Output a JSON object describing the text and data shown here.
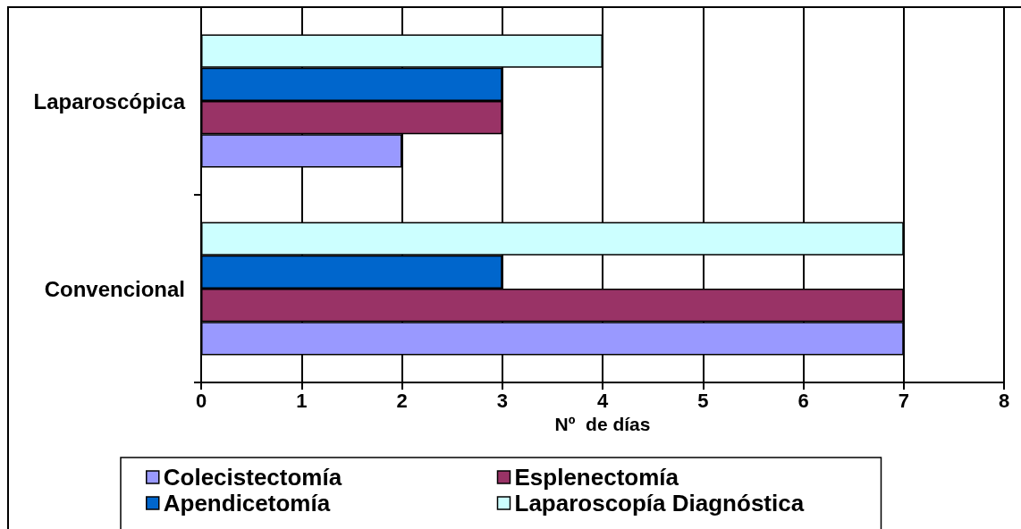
{
  "chart_data": {
    "type": "bar",
    "orientation": "horizontal",
    "categories": [
      "Laparoscópica",
      "Convencional"
    ],
    "xlabel": "Nº  de días",
    "series": [
      {
        "name": "Colecistectomía",
        "color": "#9999ff",
        "values": [
          2,
          7
        ]
      },
      {
        "name": "Esplenectomía",
        "color": "#993366",
        "values": [
          3,
          7
        ]
      },
      {
        "name": "Apendicetomía",
        "color": "#0066cc",
        "values": [
          3,
          3
        ]
      },
      {
        "name": "Laparoscopía Diagnóstica",
        "color": "#ccffff",
        "values": [
          4,
          7
        ]
      }
    ],
    "xlim": [
      0,
      8
    ],
    "xticks": [
      0,
      1,
      2,
      3,
      4,
      5,
      6,
      7,
      8
    ],
    "grid": "x",
    "legend": "bottom"
  }
}
